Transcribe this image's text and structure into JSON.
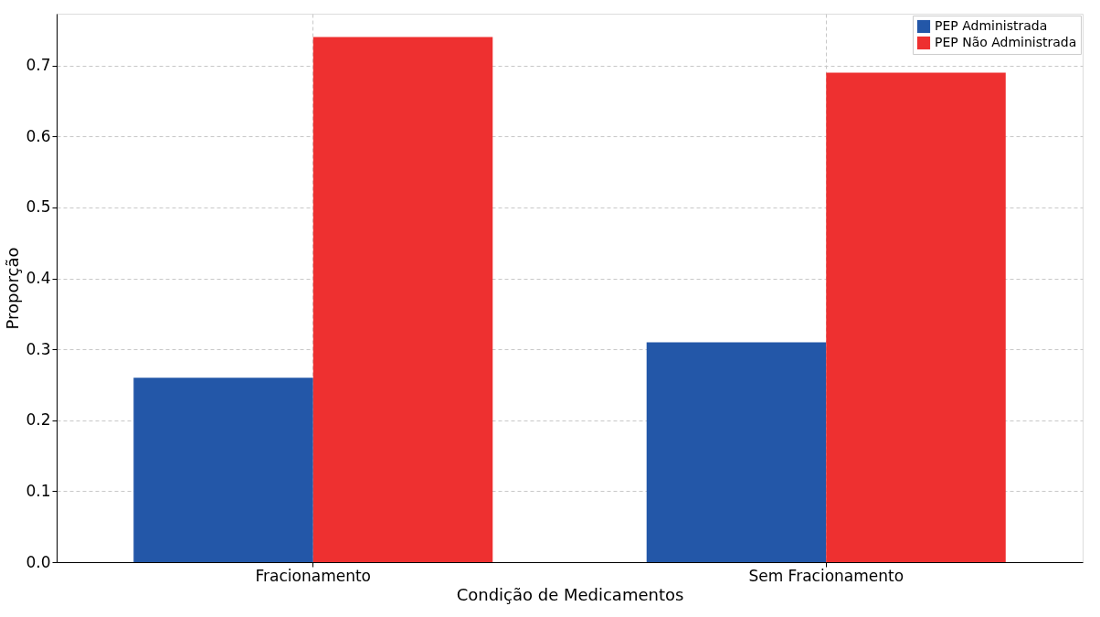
{
  "chart_data": {
    "type": "bar",
    "xlabel": "Condição de Medicamentos",
    "ylabel": "Proporção",
    "categories": [
      "Fracionamento",
      "Sem Fracionamento"
    ],
    "series": [
      {
        "name": "PEP Administrada",
        "color": "#2357a8",
        "values": [
          0.26,
          0.31
        ]
      },
      {
        "name": "PEP Não Administrada",
        "color": "#ee3030",
        "values": [
          0.74,
          0.69
        ]
      }
    ],
    "ylim": [
      0,
      0.773
    ],
    "yticks": [
      {
        "value": 0,
        "label": "0.0"
      },
      0.1,
      0.2,
      0.3,
      0.4,
      0.5,
      0.6,
      0.7
    ],
    "grid": true,
    "legend": "top right"
  }
}
